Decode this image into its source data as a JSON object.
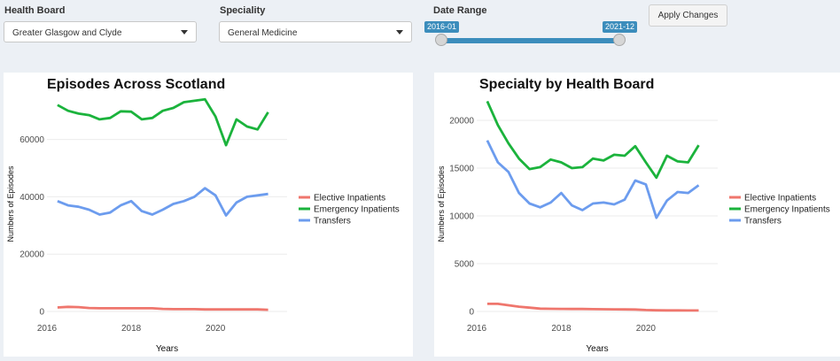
{
  "controls": {
    "health_board": {
      "label": "Health Board",
      "value": "Greater Glasgow and Clyde"
    },
    "speciality": {
      "label": "Speciality",
      "value": "General Medicine"
    },
    "date_range": {
      "label": "Date Range",
      "start": "2016-01",
      "end": "2021-12"
    },
    "apply_label": "Apply Changes"
  },
  "colors": {
    "elective": "#ef766d",
    "emergency": "#1bb33c",
    "transfers": "#6c9cee",
    "accent": "#3c8dbc"
  },
  "chart_data": [
    {
      "type": "line",
      "title": "Episodes Across Scotland",
      "xlabel": "Years",
      "ylabel": "Numbers of Episodes",
      "xlim": [
        2016,
        2021.7
      ],
      "ylim": [
        0,
        75000
      ],
      "xticks": [
        2016,
        2018,
        2020
      ],
      "yticks": [
        0,
        20000,
        40000,
        60000
      ],
      "legend": "right",
      "grid": true,
      "x": [
        2016.25,
        2016.5,
        2016.75,
        2017,
        2017.25,
        2017.5,
        2017.75,
        2018,
        2018.25,
        2018.5,
        2018.75,
        2019,
        2019.25,
        2019.5,
        2019.75,
        2020,
        2020.25,
        2020.5,
        2020.75,
        2021,
        2021.25
      ],
      "series": [
        {
          "name": "Elective Inpatients",
          "color": "#ef766d",
          "values": [
            1400,
            1600,
            1500,
            1200,
            1100,
            1100,
            1100,
            1100,
            1100,
            1100,
            900,
            800,
            800,
            800,
            700,
            700,
            700,
            700,
            700,
            700,
            600
          ]
        },
        {
          "name": "Emergency Inpatients",
          "color": "#1bb33c",
          "values": [
            72000,
            70000,
            69000,
            68500,
            67000,
            67500,
            69800,
            69700,
            67000,
            67500,
            70000,
            71000,
            73000,
            73500,
            74000,
            68000,
            58000,
            67000,
            64500,
            63500,
            69500
          ]
        },
        {
          "name": "Transfers",
          "color": "#6c9cee",
          "values": [
            38500,
            37000,
            36500,
            35500,
            33800,
            34500,
            37000,
            38500,
            35000,
            33800,
            35500,
            37500,
            38500,
            40000,
            43000,
            40500,
            33500,
            38000,
            40000,
            40500,
            41000
          ]
        }
      ]
    },
    {
      "type": "line",
      "title": "Specialty by Health Board",
      "xlabel": "Years",
      "ylabel": "Numbers of Episodes",
      "xlim": [
        2016,
        2021.7
      ],
      "ylim": [
        0,
        22500
      ],
      "xticks": [
        2016,
        2018,
        2020
      ],
      "yticks": [
        0,
        5000,
        10000,
        15000,
        20000
      ],
      "legend": "right",
      "grid": true,
      "x": [
        2016.25,
        2016.5,
        2016.75,
        2017,
        2017.25,
        2017.5,
        2017.75,
        2018,
        2018.25,
        2018.5,
        2018.75,
        2019,
        2019.25,
        2019.5,
        2019.75,
        2020,
        2020.25,
        2020.5,
        2020.75,
        2021,
        2021.25
      ],
      "series": [
        {
          "name": "Elective Inpatients",
          "color": "#ef766d",
          "values": [
            800,
            800,
            650,
            500,
            400,
            300,
            280,
            270,
            260,
            260,
            240,
            230,
            220,
            210,
            200,
            150,
            120,
            110,
            110,
            100,
            100
          ]
        },
        {
          "name": "Emergency Inpatients",
          "color": "#1bb33c",
          "values": [
            22000,
            19500,
            17600,
            16000,
            14900,
            15100,
            15900,
            15600,
            15000,
            15100,
            16000,
            15800,
            16400,
            16300,
            17300,
            15600,
            14000,
            16300,
            15700,
            15600,
            17400
          ]
        },
        {
          "name": "Transfers",
          "color": "#6c9cee",
          "values": [
            17900,
            15600,
            14600,
            12400,
            11300,
            10900,
            11400,
            12400,
            11100,
            10600,
            11300,
            11400,
            11200,
            11700,
            13700,
            13300,
            9800,
            11600,
            12500,
            12400,
            13200
          ]
        }
      ]
    }
  ]
}
